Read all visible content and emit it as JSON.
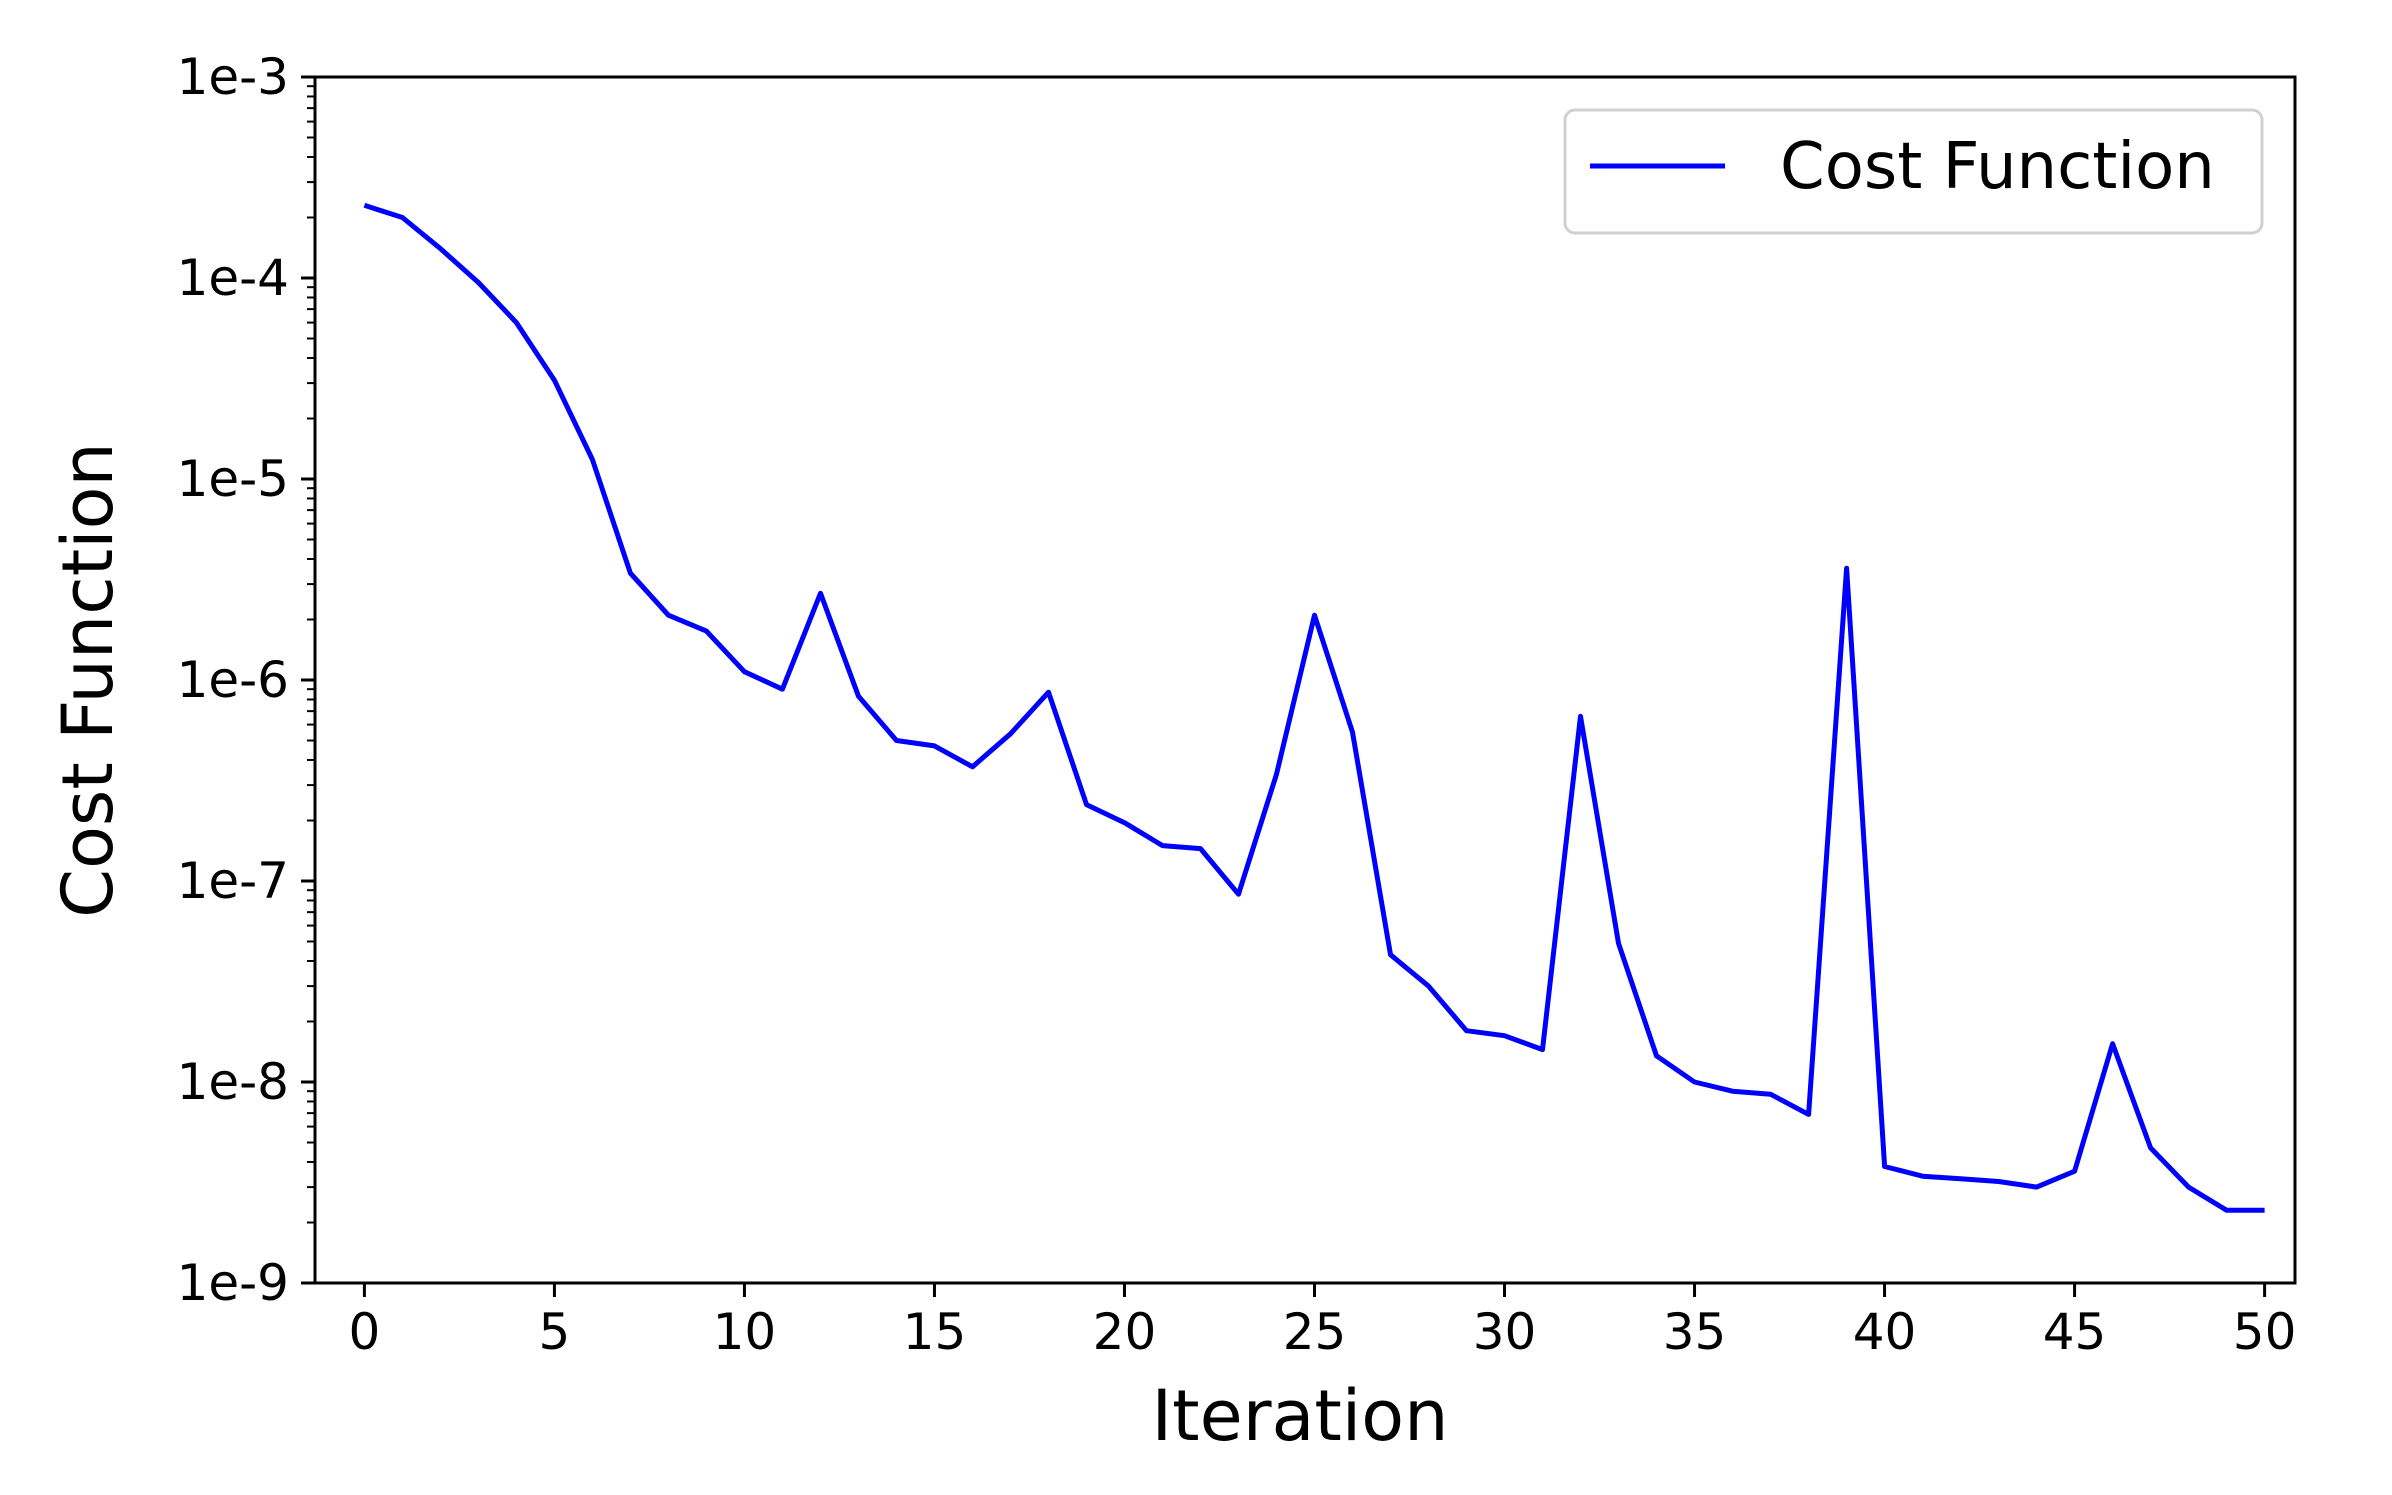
{
  "chart_data": {
    "type": "line",
    "title": "",
    "xlabel": "Iteration",
    "ylabel": "Cost Function",
    "xlim": [
      -1.3,
      50.8
    ],
    "ylim": [
      1e-09,
      0.001
    ],
    "yscale": "log",
    "grid": false,
    "legend": {
      "position": "top-right",
      "entries": [
        "Cost Function"
      ]
    },
    "x_ticks": [
      0,
      5,
      10,
      15,
      20,
      25,
      30,
      35,
      40,
      45,
      50
    ],
    "x_tick_labels": [
      "0",
      "5",
      "10",
      "15",
      "20",
      "25",
      "30",
      "35",
      "40",
      "45",
      "50"
    ],
    "y_ticks": [
      0.001,
      0.0001,
      1e-05,
      1e-06,
      1e-07,
      1e-08,
      1e-09
    ],
    "y_tick_labels": [
      "1e-3",
      "1e-4",
      "1e-5",
      "1e-6",
      "1e-7",
      "1e-8",
      "1e-9"
    ],
    "series": [
      {
        "name": "Cost Function",
        "color": "#0000ff",
        "x": [
          0,
          1,
          2,
          3,
          4,
          5,
          6,
          7,
          8,
          9,
          10,
          11,
          12,
          13,
          14,
          15,
          16,
          17,
          18,
          19,
          20,
          21,
          22,
          23,
          24,
          25,
          26,
          27,
          28,
          29,
          30,
          31,
          32,
          33,
          34,
          35,
          36,
          37,
          38,
          39,
          40,
          41,
          42,
          43,
          44,
          45,
          46,
          47,
          48,
          49,
          50
        ],
        "values": [
          0.00023,
          0.0002,
          0.00014,
          9.5e-05,
          6e-05,
          3.1e-05,
          1.25e-05,
          3.4e-06,
          2.1e-06,
          1.75e-06,
          1.1e-06,
          9e-07,
          2.7e-06,
          8.3e-07,
          5e-07,
          4.7e-07,
          3.7e-07,
          5.4e-07,
          8.7e-07,
          2.4e-07,
          1.95e-07,
          1.5e-07,
          1.45e-07,
          8.6e-08,
          3.4e-07,
          2.1e-06,
          5.5e-07,
          4.3e-08,
          3e-08,
          1.8e-08,
          1.7e-08,
          1.45e-08,
          6.6e-07,
          4.9e-08,
          1.35e-08,
          1e-08,
          9e-09,
          8.7e-09,
          6.9e-09,
          3.6e-06,
          3.8e-09,
          3.4e-09,
          3.3e-09,
          3.2e-09,
          3e-09,
          3.6e-09,
          1.55e-08,
          4.7e-09,
          3e-09,
          2.3e-09,
          2.3e-09
        ]
      }
    ]
  }
}
